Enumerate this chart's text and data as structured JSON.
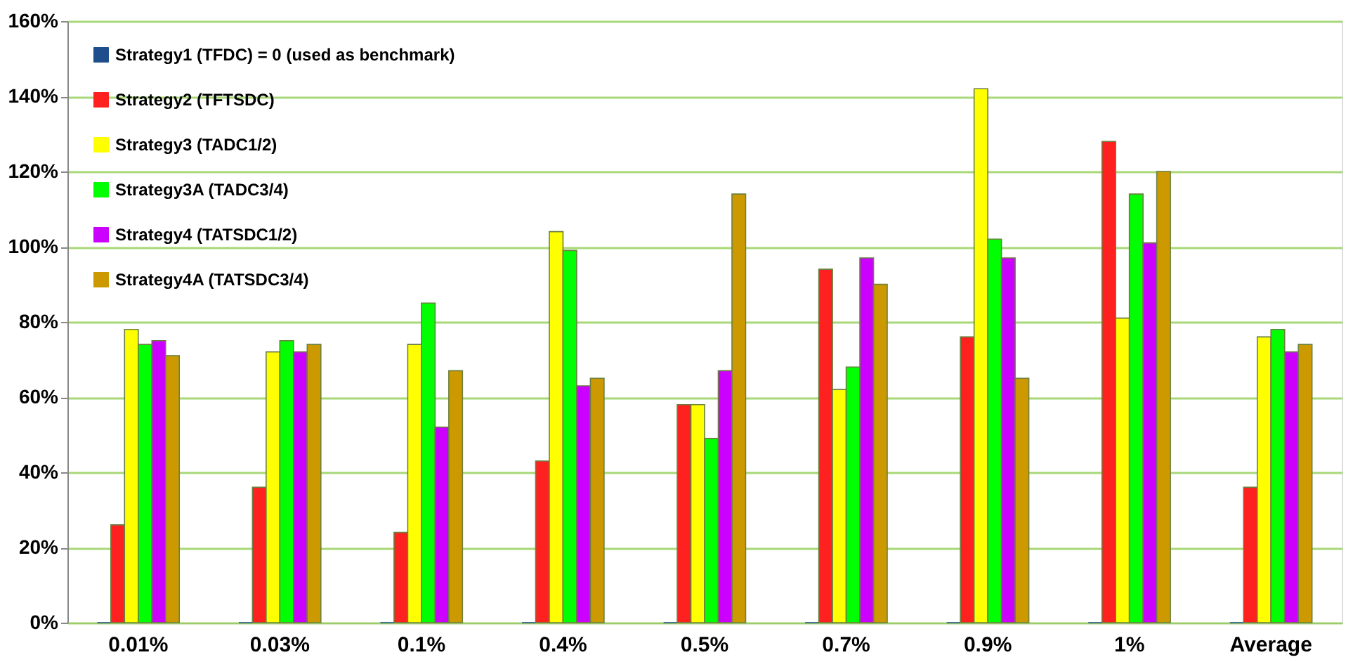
{
  "chart_data": {
    "type": "bar",
    "categories": [
      "0.01%",
      "0.03%",
      "0.1%",
      "0.4%",
      "0.5%",
      "0.7%",
      "0.9%",
      "1%",
      "Average"
    ],
    "series": [
      {
        "name": "Strategy1 (TFDC) = 0 (used as benchmark)",
        "color": "#1f4e8c",
        "values": [
          0,
          0,
          0,
          0,
          0,
          0,
          0,
          0,
          0
        ]
      },
      {
        "name": "Strategy2 (TFTSDC)",
        "color": "#ff2020",
        "values": [
          26,
          36,
          24,
          43,
          58,
          94,
          76,
          128,
          36
        ]
      },
      {
        "name": "Strategy3 (TADC1/2)",
        "color": "#ffff00",
        "values": [
          78,
          72,
          74,
          104,
          58,
          62,
          142,
          81,
          76
        ]
      },
      {
        "name": "Strategy3A (TADC3/4)",
        "color": "#00ff00",
        "values": [
          74,
          75,
          85,
          99,
          49,
          68,
          102,
          114,
          78
        ]
      },
      {
        "name": "Strategy4 (TATSDC1/2)",
        "color": "#cc00ff",
        "values": [
          75,
          72,
          52,
          63,
          67,
          97,
          97,
          101,
          72
        ]
      },
      {
        "name": "Strategy4A (TATSDC3/4)",
        "color": "#cc9900",
        "values": [
          71,
          74,
          67,
          65,
          114,
          90,
          65,
          120,
          74
        ]
      }
    ],
    "ylim": [
      0,
      160
    ],
    "yticks": [
      {
        "value": 0,
        "label": "0%"
      },
      {
        "value": 20,
        "label": "20%"
      },
      {
        "value": 40,
        "label": "40%"
      },
      {
        "value": 60,
        "label": "60%"
      },
      {
        "value": 80,
        "label": "80%"
      },
      {
        "value": 100,
        "label": "100%"
      },
      {
        "value": 120,
        "label": "120%"
      },
      {
        "value": 140,
        "label": "140%"
      },
      {
        "value": 160,
        "label": "160%"
      }
    ],
    "grid": "y",
    "legend": "top left"
  }
}
